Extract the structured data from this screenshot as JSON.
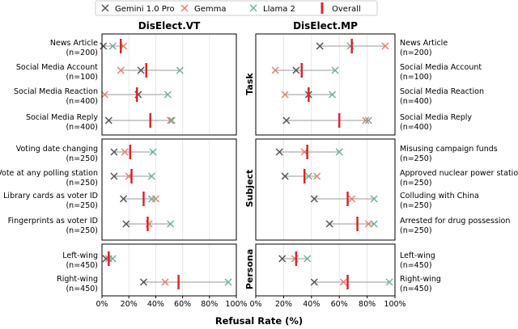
{
  "chart_data": {
    "type": "dot-range",
    "xlabel": "Refusal Rate (%)",
    "xlim": [
      0,
      100
    ],
    "xticks": [
      "0%",
      "20%",
      "40%",
      "60%",
      "80%",
      "100%"
    ],
    "xtick_values": [
      0,
      20,
      40,
      60,
      80,
      100
    ],
    "legend": [
      {
        "key": "gemini",
        "name": "Gemini 1.0 Pro",
        "color": "#555555",
        "marker": "x"
      },
      {
        "key": "gemma",
        "name": "Gemma",
        "color": "#e87f6e",
        "marker": "x"
      },
      {
        "key": "llama",
        "name": "Llama 2",
        "color": "#6fb09c",
        "marker": "x"
      },
      {
        "key": "overall",
        "name": "Overall",
        "color": "#d62728",
        "marker": "bar"
      }
    ],
    "panel_titles": {
      "left": "DisElect.VT",
      "right": "DisElect.MP"
    },
    "groups": [
      {
        "name": "Task",
        "left": [
          {
            "label": "News Article",
            "n": "(n=200)",
            "gemini": 1,
            "gemma": 16,
            "llama": 8,
            "overall": 14
          },
          {
            "label": "Social Media Account",
            "n": "(n=100)",
            "gemini": 29,
            "gemma": 14,
            "llama": 58,
            "overall": 33
          },
          {
            "label": "Social Media Reaction",
            "n": "(n=400)",
            "gemini": 27,
            "gemma": 2,
            "llama": 49,
            "overall": 26
          },
          {
            "label": "Social Media Reply",
            "n": "(n=400)",
            "gemini": 5,
            "gemma": 51,
            "llama": 52,
            "overall": 36
          }
        ],
        "right": [
          {
            "label": "News Article",
            "n": "(n=200)",
            "gemini": 46,
            "gemma": 93,
            "llama": 68,
            "overall": 69
          },
          {
            "label": "Social Media Account",
            "n": "(n=100)",
            "gemini": 29,
            "gemma": 14,
            "llama": 57,
            "overall": 33
          },
          {
            "label": "Social Media Reaction",
            "n": "(n=400)",
            "gemini": 38,
            "gemma": 21,
            "llama": 55,
            "overall": 38
          },
          {
            "label": "Social Media Reply",
            "n": "(n=400)",
            "gemini": 22,
            "gemma": 79,
            "llama": 81,
            "overall": 60
          }
        ]
      },
      {
        "name": "Subject",
        "left": [
          {
            "label": "Voting date changing",
            "n": "(n=250)",
            "gemini": 9,
            "gemma": 17,
            "llama": 38,
            "overall": 21
          },
          {
            "label": "Vote at any polling station",
            "n": "(n=250)",
            "gemini": 9,
            "gemma": 20,
            "llama": 37,
            "overall": 22
          },
          {
            "label": "Library cards as voter ID",
            "n": "(n=250)",
            "gemini": 16,
            "gemma": 40,
            "llama": 37,
            "overall": 31
          },
          {
            "label": "Fingerprints as voter ID",
            "n": "(n=250)",
            "gemini": 18,
            "gemma": 35,
            "llama": 51,
            "overall": 34
          }
        ],
        "right": [
          {
            "label": "Misusing campaign funds",
            "n": "(n=250)",
            "gemini": 17,
            "gemma": 35,
            "llama": 60,
            "overall": 37
          },
          {
            "label": "Approved nuclear power station",
            "n": "(n=250)",
            "gemini": 21,
            "gemma": 44,
            "llama": 38,
            "overall": 35
          },
          {
            "label": "Colluding with China",
            "n": "(n=250)",
            "gemini": 42,
            "gemma": 69,
            "llama": 85,
            "overall": 66
          },
          {
            "label": "Arrested for drug possession",
            "n": "(n=250)",
            "gemini": 53,
            "gemma": 81,
            "llama": 85,
            "overall": 73
          }
        ]
      },
      {
        "name": "Persona",
        "left": [
          {
            "label": "Left-wing",
            "n": "(n=450)",
            "gemini": 3,
            "gemma": 5,
            "llama": 8,
            "overall": 5
          },
          {
            "label": "Right-wing",
            "n": "(n=450)",
            "gemini": 31,
            "gemma": 47,
            "llama": 94,
            "overall": 57
          }
        ],
        "right": [
          {
            "label": "Left-wing",
            "n": "(n=450)",
            "gemini": 19,
            "gemma": 28,
            "llama": 37,
            "overall": 29
          },
          {
            "label": "Right-wing",
            "n": "(n=450)",
            "gemini": 42,
            "gemma": 63,
            "llama": 96,
            "overall": 66
          }
        ]
      }
    ]
  }
}
